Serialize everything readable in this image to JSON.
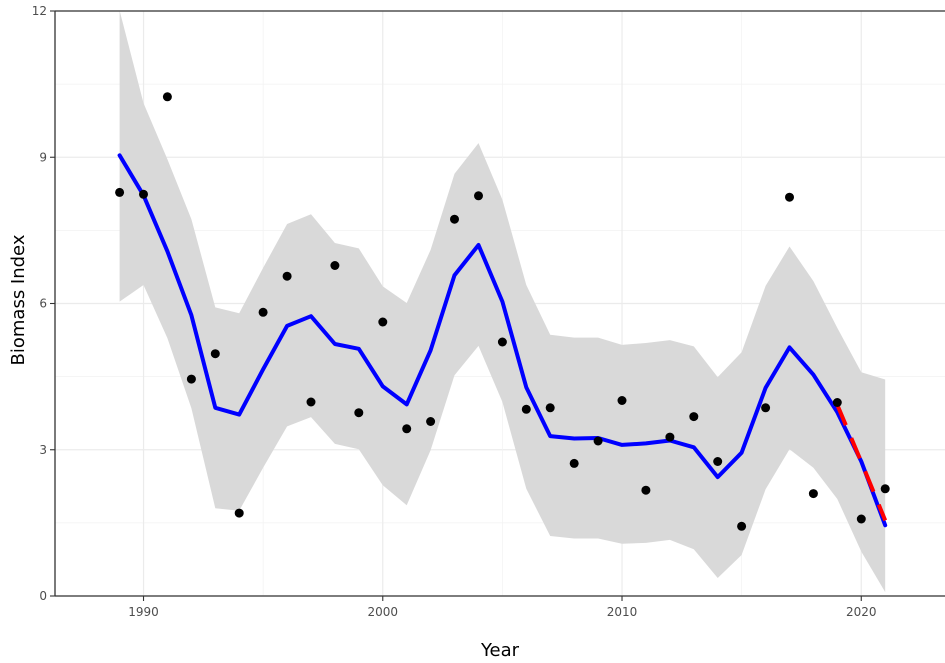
{
  "chart_data": {
    "type": "scatter",
    "xlabel": "Year",
    "ylabel": "Biomass Index",
    "xlim": [
      1986.3,
      2023.5
    ],
    "ylim": [
      0,
      12
    ],
    "x_ticks": [
      1990,
      2000,
      2010,
      2020
    ],
    "y_ticks": [
      0,
      3,
      6,
      9,
      12
    ],
    "x_tick_labels": [
      "1990",
      "2000",
      "2010",
      "2020"
    ],
    "y_tick_labels": [
      "0",
      "3",
      "6",
      "9",
      "12"
    ],
    "grid": true,
    "legend": "none",
    "colors": {
      "points": "#000000",
      "trend": "#0000ff",
      "band": "#d9d9d9",
      "recent": "#ff0000",
      "grid": "#ebebeb"
    },
    "points": {
      "x": [
        1989,
        1990,
        1991,
        1992,
        1993,
        1994,
        1995,
        1996,
        1997,
        1998,
        1999,
        2000,
        2001,
        2002,
        2003,
        2004,
        2005,
        2006,
        2007,
        2008,
        2009,
        2010,
        2011,
        2012,
        2013,
        2014,
        2015,
        2016,
        2017,
        2018,
        2019,
        2020,
        2021
      ],
      "y": [
        8.28,
        8.24,
        10.24,
        4.45,
        4.97,
        1.7,
        5.82,
        6.56,
        3.98,
        6.78,
        3.76,
        5.62,
        3.43,
        3.58,
        7.73,
        8.21,
        5.21,
        3.83,
        3.86,
        2.72,
        3.18,
        4.01,
        2.17,
        3.26,
        3.68,
        2.76,
        1.43,
        3.86,
        8.18,
        2.1,
        3.97,
        1.58,
        2.2
      ]
    },
    "trend": {
      "x": [
        1989,
        1990,
        1991,
        1992,
        1993,
        1994,
        1995,
        1996,
        1997,
        1998,
        1999,
        2000,
        2001,
        2002,
        2003,
        2004,
        2005,
        2006,
        2007,
        2008,
        2009,
        2010,
        2011,
        2012,
        2013,
        2014,
        2015,
        2016,
        2017,
        2018,
        2019,
        2020,
        2021
      ],
      "y": [
        9.04,
        8.22,
        7.07,
        5.76,
        3.86,
        3.72,
        4.65,
        5.54,
        5.74,
        5.17,
        5.07,
        4.3,
        3.93,
        5.04,
        6.58,
        7.2,
        6.04,
        4.28,
        3.28,
        3.23,
        3.24,
        3.1,
        3.13,
        3.19,
        3.05,
        2.44,
        2.94,
        4.27,
        5.1,
        4.54,
        3.77,
        2.76,
        1.45
      ],
      "lower": [
        6.04,
        6.38,
        5.29,
        3.85,
        1.8,
        1.75,
        2.63,
        3.48,
        3.67,
        3.12,
        3.01,
        2.27,
        1.86,
        2.99,
        4.53,
        5.13,
        3.98,
        2.2,
        1.23,
        1.18,
        1.18,
        1.07,
        1.09,
        1.15,
        0.96,
        0.37,
        0.84,
        2.19,
        3.01,
        2.63,
        1.99,
        0.91,
        0.08
      ],
      "upper": [
        12.01,
        10.11,
        8.96,
        7.73,
        5.92,
        5.8,
        6.73,
        7.63,
        7.83,
        7.24,
        7.13,
        6.35,
        6.01,
        7.1,
        8.66,
        9.29,
        8.13,
        6.38,
        5.36,
        5.3,
        5.3,
        5.15,
        5.19,
        5.25,
        5.12,
        4.49,
        5.0,
        6.36,
        7.17,
        6.46,
        5.5,
        4.59,
        4.44
      ]
    },
    "recent_trend": {
      "x": [
        2019,
        2020,
        2021
      ],
      "y": [
        3.92,
        2.75,
        1.55
      ]
    }
  }
}
